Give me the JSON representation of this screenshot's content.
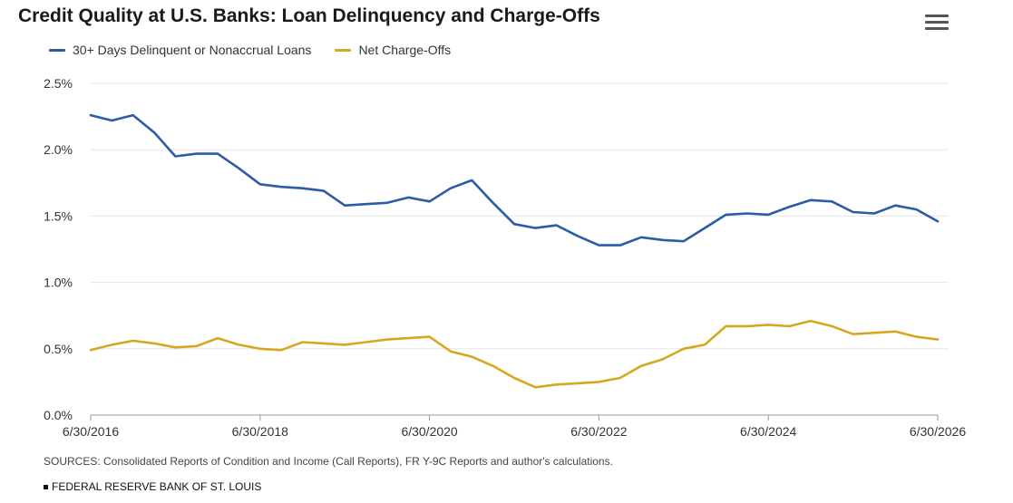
{
  "header": {
    "title": "Credit Quality at U.S. Banks: Loan Delinquency and Charge-Offs",
    "menu_icon": "hamburger-menu-icon"
  },
  "colors": {
    "delinquent": "#2a5ca8",
    "chargeoffs": "#d6a821",
    "grid": "#e6e6e6",
    "axis": "#999999"
  },
  "footer": {
    "sources": "SOURCES: Consolidated Reports of Condition and Income (Call Reports), FR Y-9C Reports and author's calculations.",
    "credit": "FEDERAL RESERVE BANK OF ST. LOUIS"
  },
  "chart_data": {
    "type": "line",
    "title": "Credit Quality at U.S. Banks: Loan Delinquency and Charge-Offs",
    "xlabel": "",
    "ylabel": "",
    "x_ticks": [
      "6/30/2016",
      "6/30/2018",
      "6/30/2020",
      "6/30/2022",
      "6/30/2024",
      "6/30/2026"
    ],
    "y_ticks": [
      "0.0%",
      "0.5%",
      "1.0%",
      "1.5%",
      "2.0%",
      "2.5%"
    ],
    "ylim": [
      0,
      2.5
    ],
    "xlim": [
      2016.5,
      2026.5
    ],
    "grid": true,
    "legend": "top-left",
    "x": [
      2016.5,
      2016.75,
      2017.0,
      2017.25,
      2017.5,
      2017.75,
      2018.0,
      2018.25,
      2018.5,
      2018.75,
      2019.0,
      2019.25,
      2019.5,
      2019.75,
      2020.0,
      2020.25,
      2020.5,
      2020.75,
      2021.0,
      2021.25,
      2021.5,
      2021.75,
      2022.0,
      2022.25,
      2022.5,
      2022.75,
      2023.0,
      2023.25,
      2023.5,
      2023.75,
      2024.0,
      2024.25,
      2024.5,
      2024.75,
      2025.0,
      2025.25,
      2025.5,
      2025.75,
      2026.0,
      2026.25,
      2026.5
    ],
    "series": [
      {
        "name": "30+ Days Delinquent or Nonaccrual Loans",
        "values": [
          2.26,
          2.22,
          2.26,
          2.13,
          1.95,
          1.97,
          1.97,
          1.86,
          1.74,
          1.72,
          1.71,
          1.69,
          1.58,
          1.59,
          1.6,
          1.64,
          1.61,
          1.71,
          1.77,
          1.6,
          1.44,
          1.41,
          1.43,
          1.35,
          1.28,
          1.28,
          1.34,
          1.32,
          1.31,
          1.41,
          1.51,
          1.52,
          1.51,
          1.57,
          1.62,
          1.61,
          1.53,
          1.52,
          1.58,
          1.55,
          1.46
        ]
      },
      {
        "name": "Net Charge-Offs",
        "values": [
          0.49,
          0.53,
          0.56,
          0.54,
          0.51,
          0.52,
          0.58,
          0.53,
          0.5,
          0.49,
          0.55,
          0.54,
          0.53,
          0.55,
          0.57,
          0.58,
          0.59,
          0.48,
          0.44,
          0.37,
          0.28,
          0.21,
          0.23,
          0.24,
          0.25,
          0.28,
          0.37,
          0.42,
          0.5,
          0.53,
          0.67,
          0.67,
          0.68,
          0.67,
          0.71,
          0.67,
          0.61,
          0.62,
          0.63,
          0.59,
          0.57
        ]
      }
    ]
  }
}
